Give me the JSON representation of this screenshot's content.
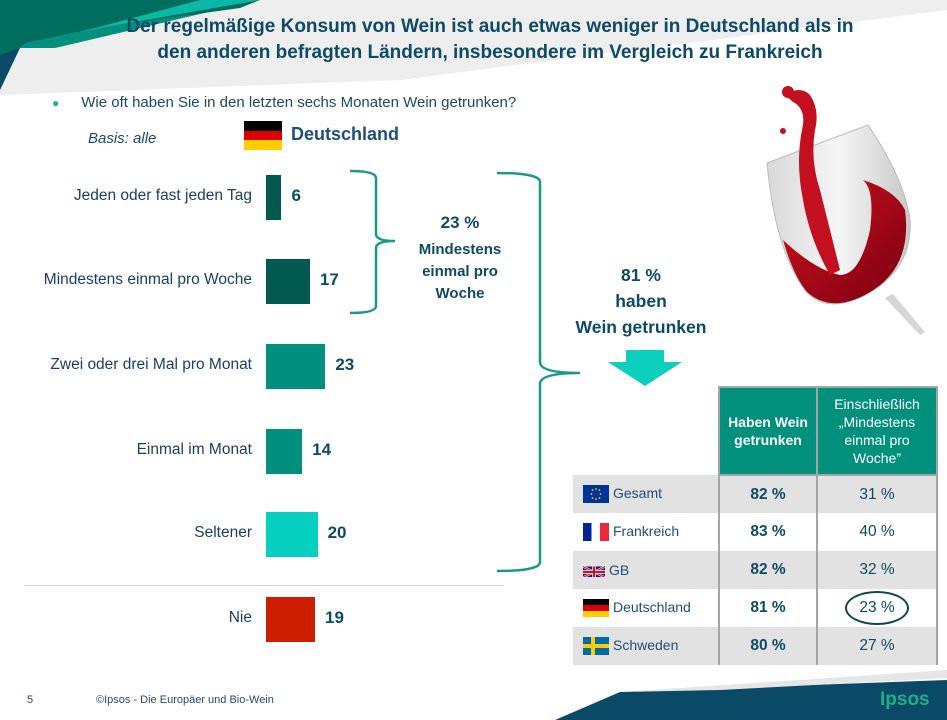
{
  "slide": {
    "title_line1": "Der regelmäßige Konsum von Wein ist auch etwas weniger in Deutschland als in",
    "title_line2": "den anderen befragten Ländern, insbesondere im Vergleich zu Frankreich",
    "question": "Wie oft haben Sie in den letzten sechs Monaten Wein getrunken?",
    "basis": "Basis: alle",
    "country_heading": "Deutschland",
    "weekly_pct": "23 %",
    "weekly_text": "Mindestens einmal pro Woche",
    "total_pct": "81 %",
    "total_line2": "haben",
    "total_line3": "Wein getrunken",
    "page_number": "5",
    "footer": "©Ipsos - Die Europäer und Bio-Wein",
    "logo": "Ipsos"
  },
  "chart_data": {
    "type": "bar",
    "orientation": "horizontal",
    "title": "Wie oft haben Sie in den letzten sechs Monaten Wein getrunken?",
    "subtitle": "Deutschland",
    "xlabel": "",
    "ylabel": "",
    "unit": "%",
    "categories": [
      "Jeden oder fast jeden Tag",
      "Mindestens einmal pro Woche",
      "Zwei oder drei Mal pro Monat",
      "Einmal im Monat",
      "Seltener",
      "Nie"
    ],
    "values": [
      6,
      17,
      23,
      14,
      20,
      19
    ],
    "colors": [
      "#005a4e",
      "#005a4e",
      "#008f7c",
      "#008f7c",
      "#05d0c0",
      "#cc1f00"
    ],
    "grid": false,
    "annotations": [
      {
        "text": "23 % Mindestens einmal pro Woche",
        "covers": [
          "Jeden oder fast jeden Tag",
          "Mindestens einmal pro Woche"
        ]
      },
      {
        "text": "81 % haben Wein getrunken",
        "covers": [
          "Jeden oder fast jeden Tag",
          "Mindestens einmal pro Woche",
          "Zwei oder drei Mal pro Monat",
          "Einmal im Monat",
          "Seltener"
        ]
      }
    ]
  },
  "table": {
    "headers": [
      "Haben Wein getrunken",
      "Einschließlich „Mindestens einmal pro Woche”"
    ],
    "rows": [
      {
        "country": "Gesamt",
        "flag": "eu-flag-icon",
        "drank": "82 %",
        "weekly": "31 %",
        "highlight": false
      },
      {
        "country": "Frankreich",
        "flag": "france-flag-icon",
        "drank": "83 %",
        "weekly": "40 %",
        "highlight": false
      },
      {
        "country": "GB",
        "flag": "uk-flag-icon",
        "drank": "82 %",
        "weekly": "32 %",
        "highlight": false
      },
      {
        "country": "Deutschland",
        "flag": "germany-flag-icon",
        "drank": "81 %",
        "weekly": "23 %",
        "highlight": true
      },
      {
        "country": "Schweden",
        "flag": "sweden-flag-icon",
        "drank": "80 %",
        "weekly": "27 %",
        "highlight": false
      }
    ]
  },
  "colors": {
    "title": "#0d4a66",
    "accent_teal": "#00907c",
    "dark_teal": "#005a4e",
    "light_teal": "#05d0c0",
    "red": "#cc1f00",
    "navy": "#0b4a66",
    "logo": "#1fae8a"
  }
}
